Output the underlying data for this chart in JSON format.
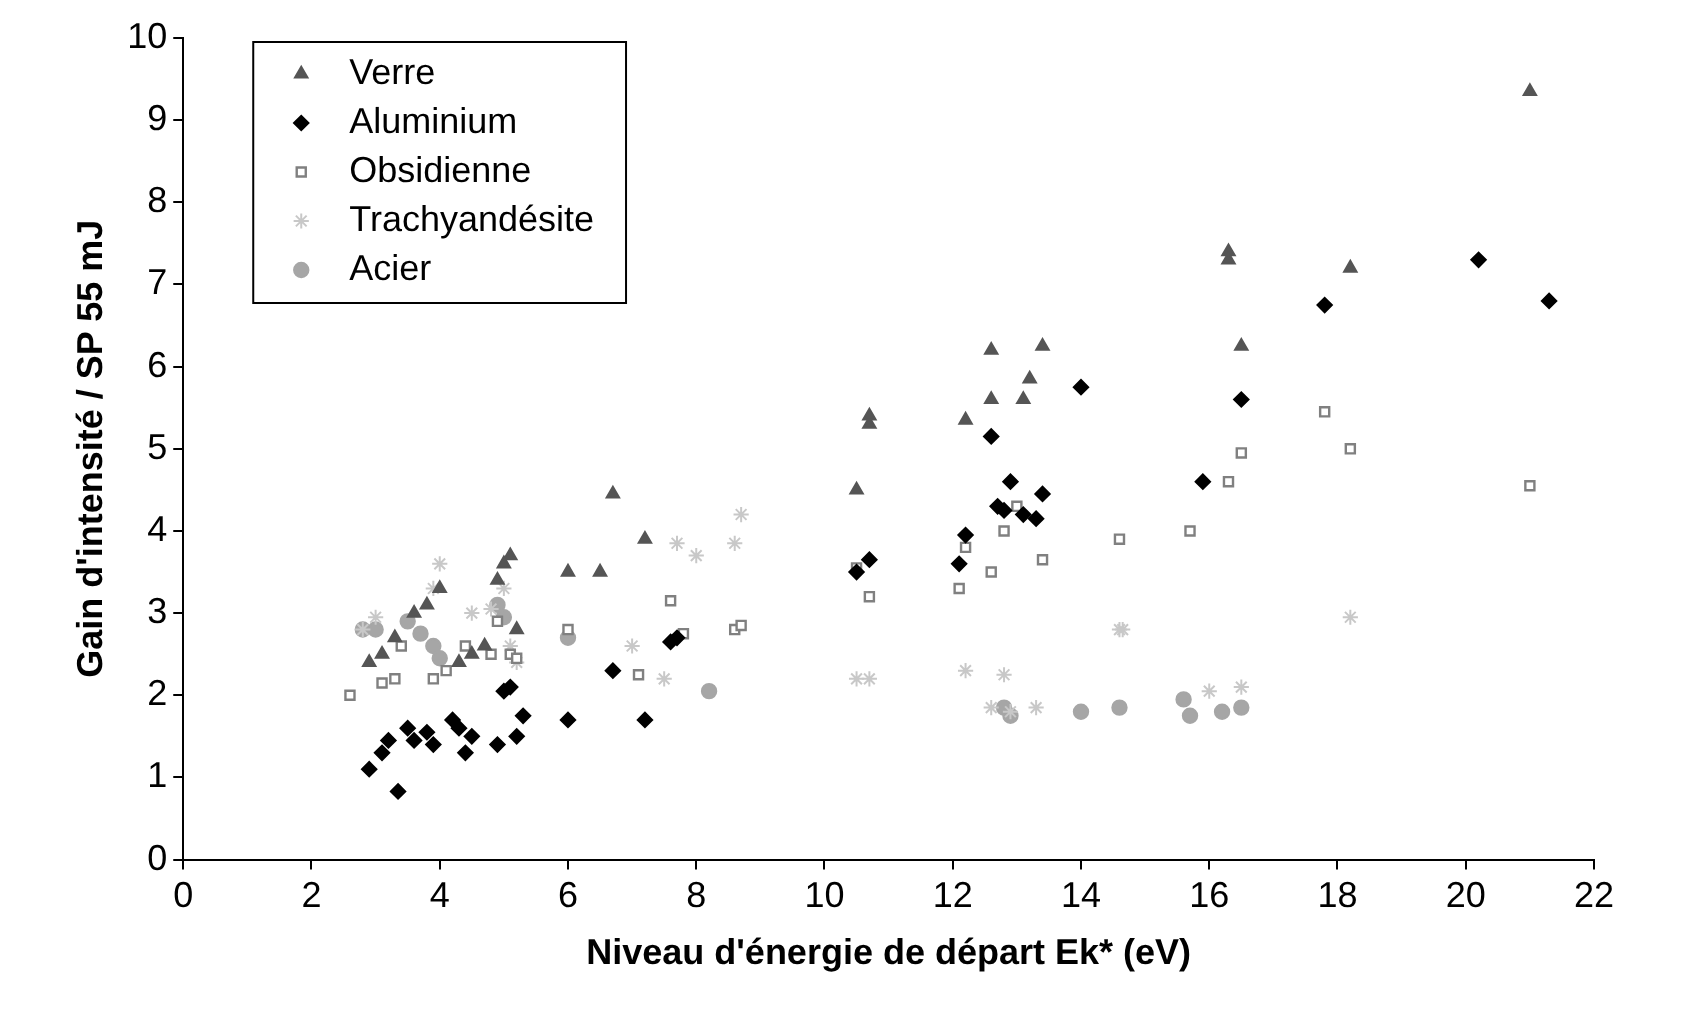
{
  "chart_data": {
    "type": "scatter",
    "xlabel": "Niveau d'énergie de départ Ek* (eV)",
    "ylabel": "Gain d'intensité / SP 55 mJ",
    "xlim": [
      0,
      22
    ],
    "xticks": [
      0,
      2,
      4,
      6,
      8,
      10,
      12,
      14,
      16,
      18,
      20,
      22
    ],
    "ylim": [
      0,
      10
    ],
    "yticks": [
      0,
      1,
      2,
      3,
      4,
      5,
      6,
      7,
      8,
      9,
      10
    ],
    "grid": false,
    "legend": "top left",
    "series": [
      {
        "name": "Verre",
        "color": "#555555",
        "marker": "triangle",
        "x": [
          2.9,
          3.1,
          3.3,
          3.6,
          3.8,
          4.0,
          4.3,
          4.5,
          4.7,
          4.9,
          5.0,
          5.1,
          5.2,
          6.0,
          6.5,
          6.7,
          7.2,
          10.5,
          10.7,
          10.7,
          12.2,
          12.6,
          12.6,
          13.1,
          13.2,
          13.4,
          16.3,
          16.3,
          16.5,
          18.2,
          21.0
        ],
        "values": [
          2.4,
          2.5,
          2.7,
          3.0,
          3.1,
          3.3,
          2.4,
          2.5,
          2.6,
          3.4,
          3.6,
          3.7,
          2.8,
          3.5,
          3.5,
          4.45,
          3.9,
          4.5,
          5.3,
          5.4,
          5.35,
          5.6,
          6.2,
          5.6,
          5.85,
          6.25,
          7.4,
          7.3,
          6.25,
          7.2,
          9.35
        ]
      },
      {
        "name": "Aluminium",
        "color": "#000000",
        "marker": "diamond",
        "x": [
          2.9,
          3.1,
          3.2,
          3.35,
          3.5,
          3.6,
          3.8,
          3.9,
          4.2,
          4.3,
          4.4,
          4.5,
          4.9,
          5.0,
          5.1,
          5.2,
          5.3,
          6.0,
          6.7,
          7.2,
          7.6,
          7.7,
          10.5,
          10.7,
          12.1,
          12.2,
          12.6,
          12.7,
          12.8,
          12.9,
          13.1,
          13.3,
          13.4,
          14.0,
          15.9,
          16.5,
          17.8,
          20.2,
          21.3
        ],
        "values": [
          1.1,
          1.3,
          1.45,
          0.83,
          1.6,
          1.45,
          1.55,
          1.4,
          1.7,
          1.6,
          1.3,
          1.5,
          1.4,
          2.05,
          2.1,
          1.5,
          1.75,
          1.7,
          2.3,
          1.7,
          2.65,
          2.7,
          3.5,
          3.65,
          3.6,
          3.95,
          5.15,
          4.3,
          4.25,
          4.6,
          4.2,
          4.15,
          4.45,
          5.75,
          4.6,
          5.6,
          6.75,
          7.3,
          6.8
        ]
      },
      {
        "name": "Obsidienne",
        "color": "#808080",
        "marker": "square",
        "x": [
          2.6,
          3.1,
          3.3,
          3.4,
          3.9,
          4.1,
          4.4,
          4.8,
          4.9,
          5.1,
          5.2,
          6.0,
          7.1,
          7.6,
          7.8,
          8.6,
          8.7,
          10.5,
          10.7,
          12.1,
          12.2,
          12.6,
          12.8,
          13.0,
          13.4,
          14.6,
          15.7,
          16.3,
          16.5,
          17.8,
          18.2,
          21.0
        ],
        "values": [
          2.0,
          2.15,
          2.2,
          2.6,
          2.2,
          2.3,
          2.6,
          2.5,
          2.9,
          2.5,
          2.45,
          2.8,
          2.25,
          3.15,
          2.75,
          2.8,
          2.85,
          3.55,
          3.2,
          3.3,
          3.8,
          3.5,
          4.0,
          4.3,
          3.65,
          3.9,
          4.0,
          4.6,
          4.95,
          5.45,
          5.0,
          4.55
        ]
      },
      {
        "name": "Trachyandésite",
        "color": "#c8c8c8",
        "marker": "cross",
        "x": [
          2.8,
          3.0,
          3.9,
          4.0,
          4.5,
          4.8,
          5.0,
          5.1,
          5.2,
          7.0,
          7.5,
          7.7,
          8.0,
          8.6,
          8.7,
          10.5,
          10.7,
          12.2,
          12.6,
          12.8,
          12.9,
          13.3,
          14.6,
          14.65,
          16.0,
          16.5,
          18.2
        ],
        "values": [
          2.8,
          2.95,
          3.3,
          3.6,
          3.0,
          3.05,
          3.3,
          2.6,
          2.4,
          2.6,
          2.2,
          3.85,
          3.7,
          3.85,
          4.2,
          2.2,
          2.2,
          2.3,
          1.85,
          2.25,
          1.8,
          1.85,
          2.8,
          2.8,
          2.05,
          2.1,
          2.95
        ]
      },
      {
        "name": "Acier",
        "color": "#a6a6a6",
        "marker": "circle",
        "x": [
          2.8,
          3.0,
          3.5,
          3.7,
          3.9,
          4.0,
          4.9,
          5.0,
          6.0,
          8.2,
          12.8,
          12.9,
          14.0,
          14.6,
          15.6,
          15.7,
          16.2,
          16.5
        ],
        "values": [
          2.8,
          2.8,
          2.9,
          2.75,
          2.6,
          2.45,
          3.1,
          2.95,
          2.7,
          2.05,
          1.85,
          1.75,
          1.8,
          1.85,
          1.95,
          1.75,
          1.8,
          1.85
        ]
      }
    ]
  }
}
